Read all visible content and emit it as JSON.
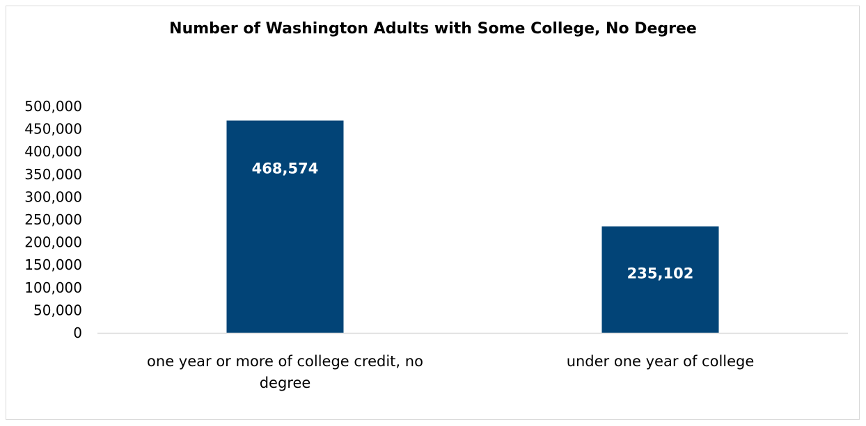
{
  "chart_data": {
    "type": "bar",
    "title": "Number of Washington Adults with Some College, No Degree",
    "categories": [
      [
        "one year or more of college credit, no",
        "degree"
      ],
      [
        "under one year of college"
      ]
    ],
    "values": [
      468574,
      235102
    ],
    "data_labels": [
      "468,574",
      "235,102"
    ],
    "ylim": [
      0,
      500000
    ],
    "y_ticks": [
      {
        "value": 0,
        "label": "0"
      },
      {
        "value": 50000,
        "label": "50,000"
      },
      {
        "value": 100000,
        "label": "100,000"
      },
      {
        "value": 150000,
        "label": "150,000"
      },
      {
        "value": 200000,
        "label": "200,000"
      },
      {
        "value": 250000,
        "label": "250,000"
      },
      {
        "value": 300000,
        "label": "300,000"
      },
      {
        "value": 350000,
        "label": "350,000"
      },
      {
        "value": 400000,
        "label": "400,000"
      },
      {
        "value": 450000,
        "label": "450,000"
      },
      {
        "value": 500000,
        "label": "500,000"
      }
    ],
    "xlabel": "",
    "ylabel": "",
    "grid": false,
    "legend": "none",
    "colors": {
      "bar": "#024477",
      "axis": "#d9d9d9",
      "data_label": "#ffffff"
    }
  }
}
